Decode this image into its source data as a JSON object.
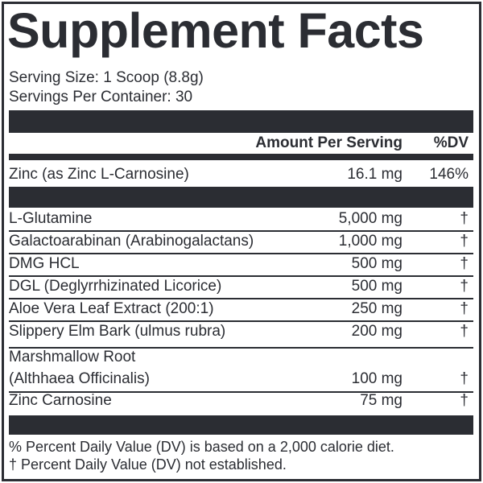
{
  "title": "Supplement Facts",
  "serving_size": "Serving Size: 1 Scoop (8.8g)",
  "servings_per_container": "Servings Per Container: 30",
  "header": {
    "amount": "Amount Per Serving",
    "dv": "%DV"
  },
  "vitamins": [
    {
      "name": "Zinc (as Zinc L-Carnosine)",
      "amount": "16.1 mg",
      "dv": "146%"
    }
  ],
  "ingredients": [
    {
      "name": "L-Glutamine",
      "amount": "5,000 mg",
      "dv": "†"
    },
    {
      "name": "Galactoarabinan (Arabinogalactans)",
      "amount": "1,000 mg",
      "dv": "†"
    },
    {
      "name": "DMG HCL",
      "amount": "500 mg",
      "dv": "†"
    },
    {
      "name": "DGL (Deglyrrhizinated Licorice)",
      "amount": "500 mg",
      "dv": "†"
    },
    {
      "name": "Aloe Vera Leaf Extract (200:1)",
      "amount": "250 mg",
      "dv": "†"
    },
    {
      "name": "Slippery Elm Bark (ulmus rubra)",
      "amount": "200 mg",
      "dv": "†"
    },
    {
      "name": "Marshmallow Root",
      "name2": "(Althhaea Officinalis)",
      "amount": "100 mg",
      "dv": "†"
    },
    {
      "name": "Zinc Carnosine",
      "amount": "75 mg",
      "dv": "†"
    }
  ],
  "footnotes": [
    "% Percent Daily Value (DV) is based on a 2,000 calorie diet.",
    "† Percent Daily Value (DV) not established."
  ],
  "colors": {
    "ink": "#2b2d33",
    "background": "#ffffff"
  }
}
